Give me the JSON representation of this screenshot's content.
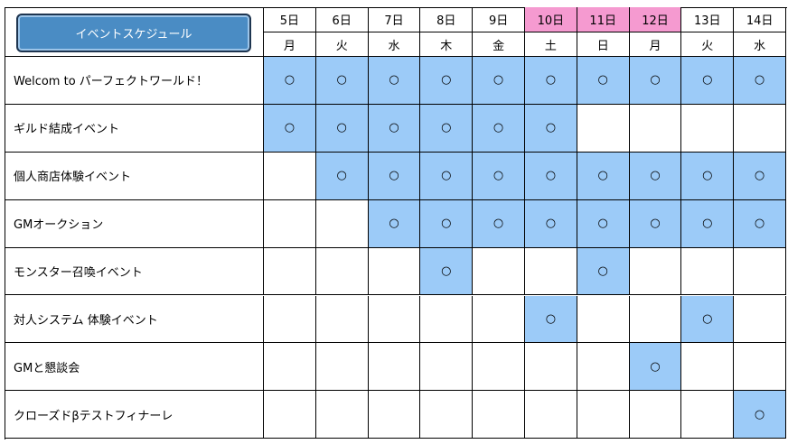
{
  "header": {
    "title": "イベントスケジュール"
  },
  "days": [
    {
      "date": "5日",
      "weekday": "月",
      "highlight": false
    },
    {
      "date": "6日",
      "weekday": "火",
      "highlight": false
    },
    {
      "date": "7日",
      "weekday": "水",
      "highlight": false
    },
    {
      "date": "8日",
      "weekday": "木",
      "highlight": false
    },
    {
      "date": "9日",
      "weekday": "金",
      "highlight": false
    },
    {
      "date": "10日",
      "weekday": "土",
      "highlight": true
    },
    {
      "date": "11日",
      "weekday": "日",
      "highlight": true
    },
    {
      "date": "12日",
      "weekday": "月",
      "highlight": true
    },
    {
      "date": "13日",
      "weekday": "火",
      "highlight": false
    },
    {
      "date": "14日",
      "weekday": "水",
      "highlight": false
    }
  ],
  "rows": [
    {
      "event": "Welcom to パーフェクトワールド！",
      "cells": [
        "○",
        "○",
        "○",
        "○",
        "○",
        "○",
        "○",
        "○",
        "○",
        "○"
      ]
    },
    {
      "event": "ギルド結成イベント",
      "cells": [
        "○",
        "○",
        "○",
        "○",
        "○",
        "○",
        null,
        null,
        null,
        null
      ]
    },
    {
      "event": "個人商店体験イベント",
      "cells": [
        null,
        "○",
        "○",
        "○",
        "○",
        "○",
        "○",
        "○",
        "○",
        "○"
      ]
    },
    {
      "event": "GMオークション",
      "cells": [
        null,
        null,
        "○",
        "○",
        "○",
        "○",
        "○",
        "○",
        "○",
        "○"
      ]
    },
    {
      "event": "モンスター召喚イベント",
      "cells": [
        null,
        null,
        null,
        "○",
        null,
        null,
        "○",
        null,
        null,
        null
      ]
    },
    {
      "event": "対人システム 体験イベント",
      "cells": [
        null,
        null,
        null,
        null,
        null,
        "○",
        null,
        null,
        "○",
        null
      ]
    },
    {
      "event": "GMと懇談会",
      "cells": [
        null,
        null,
        null,
        null,
        null,
        null,
        null,
        "○",
        null,
        null
      ]
    },
    {
      "event": "クローズドβテストフィナーレ",
      "cells": [
        null,
        null,
        null,
        null,
        null,
        null,
        null,
        null,
        null,
        "○"
      ]
    }
  ]
}
